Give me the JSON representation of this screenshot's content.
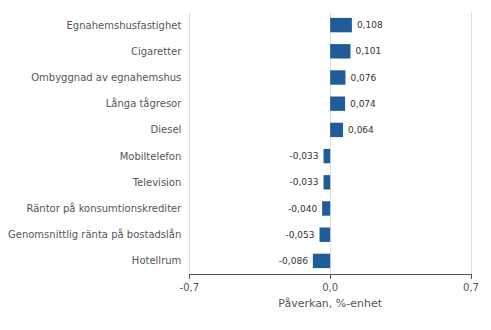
{
  "chart_data": {
    "type": "bar",
    "orientation": "horizontal",
    "categories": [
      "Hotellrum",
      "Genomsnittlig ränta på bostadslån",
      "Räntor på konsumtionskrediter",
      "Television",
      "Mobiltelefon",
      "Diesel",
      "Långa tågresor",
      "Ombyggnad av egnahemshus",
      "Cigaretter",
      "Egnahemshusfastighet"
    ],
    "values": [
      -0.086,
      -0.053,
      -0.04,
      -0.033,
      -0.033,
      0.064,
      0.074,
      0.076,
      0.101,
      0.108
    ],
    "value_labels": [
      "-0,086",
      "-0,053",
      "-0,040",
      "-0,033",
      "-0,033",
      "0,064",
      "0,074",
      "0,076",
      "0,101",
      "0,108"
    ],
    "data_labels": true,
    "color": "#1F5C99",
    "xlabel": "Påverkan, %-enhet",
    "xlim": [
      -0.7,
      0.7
    ],
    "xticks": [
      {
        "value": -0.7,
        "label": "-0,7"
      },
      {
        "value": 0.0,
        "label": "0,0"
      },
      {
        "value": 0.7,
        "label": "0,7"
      }
    ],
    "grid": true
  }
}
